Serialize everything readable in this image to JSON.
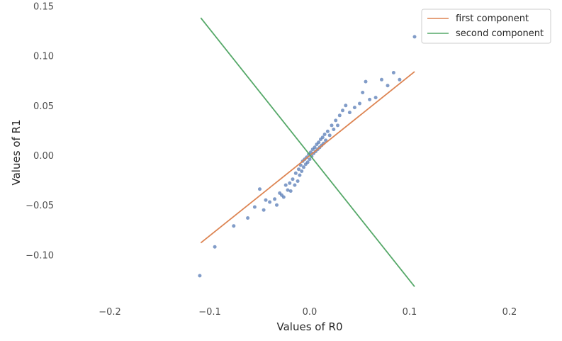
{
  "chart_data": {
    "type": "scatter",
    "xlabel": "Values of R0",
    "ylabel": "Values of R1",
    "xlim": [
      -0.25,
      0.25
    ],
    "ylim": [
      -0.15,
      0.15
    ],
    "x_ticks": [
      -0.2,
      -0.1,
      0.0,
      0.1,
      0.2
    ],
    "x_tick_labels": [
      "−0.2",
      "−0.1",
      "0.0",
      "0.1",
      "0.2"
    ],
    "y_ticks": [
      -0.1,
      -0.05,
      0.0,
      0.05,
      0.1,
      0.15
    ],
    "y_tick_labels": [
      "−0.10",
      "−0.05",
      "0.00",
      "0.05",
      "0.10",
      "0.15"
    ],
    "grid": false,
    "legend_position": "top-right",
    "colors": {
      "points": "#4c72b0",
      "first": "#dd8452",
      "second": "#55a868"
    },
    "series": [
      {
        "kind": "scatter",
        "points": [
          [
            -0.11,
            -0.121
          ],
          [
            -0.095,
            -0.092
          ],
          [
            -0.076,
            -0.071
          ],
          [
            -0.062,
            -0.063
          ],
          [
            -0.055,
            -0.052
          ],
          [
            -0.05,
            -0.034
          ],
          [
            -0.046,
            -0.055
          ],
          [
            -0.044,
            -0.045
          ],
          [
            -0.04,
            -0.047
          ],
          [
            -0.035,
            -0.044
          ],
          [
            -0.033,
            -0.05
          ],
          [
            -0.03,
            -0.038
          ],
          [
            -0.028,
            -0.04
          ],
          [
            -0.026,
            -0.042
          ],
          [
            -0.024,
            -0.03
          ],
          [
            -0.022,
            -0.035
          ],
          [
            -0.02,
            -0.028
          ],
          [
            -0.019,
            -0.036
          ],
          [
            -0.017,
            -0.024
          ],
          [
            -0.015,
            -0.03
          ],
          [
            -0.014,
            -0.018
          ],
          [
            -0.012,
            -0.026
          ],
          [
            -0.011,
            -0.014
          ],
          [
            -0.01,
            -0.02
          ],
          [
            -0.009,
            -0.01
          ],
          [
            -0.008,
            -0.016
          ],
          [
            -0.007,
            -0.006
          ],
          [
            -0.006,
            -0.012
          ],
          [
            -0.005,
            -0.004
          ],
          [
            -0.004,
            -0.009
          ],
          [
            -0.003,
            -0.002
          ],
          [
            -0.002,
            -0.007
          ],
          [
            -0.001,
            0.001
          ],
          [
            0.0,
            -0.004
          ],
          [
            0.001,
            0.003
          ],
          [
            0.002,
            -0.001
          ],
          [
            0.003,
            0.006
          ],
          [
            0.004,
            0.002
          ],
          [
            0.005,
            0.008
          ],
          [
            0.006,
            0.004
          ],
          [
            0.007,
            0.011
          ],
          [
            0.008,
            0.006
          ],
          [
            0.009,
            0.013
          ],
          [
            0.01,
            0.008
          ],
          [
            0.011,
            0.016
          ],
          [
            0.012,
            0.01
          ],
          [
            0.013,
            0.018
          ],
          [
            0.014,
            0.012
          ],
          [
            0.015,
            0.021
          ],
          [
            0.016,
            0.015
          ],
          [
            0.018,
            0.024
          ],
          [
            0.02,
            0.02
          ],
          [
            0.022,
            0.03
          ],
          [
            0.024,
            0.026
          ],
          [
            0.026,
            0.035
          ],
          [
            0.028,
            0.03
          ],
          [
            0.03,
            0.04
          ],
          [
            0.033,
            0.045
          ],
          [
            0.036,
            0.05
          ],
          [
            0.04,
            0.043
          ],
          [
            0.045,
            0.048
          ],
          [
            0.05,
            0.052
          ],
          [
            0.053,
            0.063
          ],
          [
            0.056,
            0.074
          ],
          [
            0.06,
            0.056
          ],
          [
            0.066,
            0.058
          ],
          [
            0.072,
            0.076
          ],
          [
            0.078,
            0.07
          ],
          [
            0.084,
            0.083
          ],
          [
            0.09,
            0.076
          ],
          [
            0.105,
            0.119
          ]
        ]
      },
      {
        "name": "first component",
        "kind": "line",
        "x": [
          -0.109,
          0.105
        ],
        "y": [
          -0.088,
          0.084
        ]
      },
      {
        "name": "second component",
        "kind": "line",
        "x": [
          -0.109,
          0.105
        ],
        "y": [
          0.138,
          -0.132
        ]
      }
    ]
  }
}
